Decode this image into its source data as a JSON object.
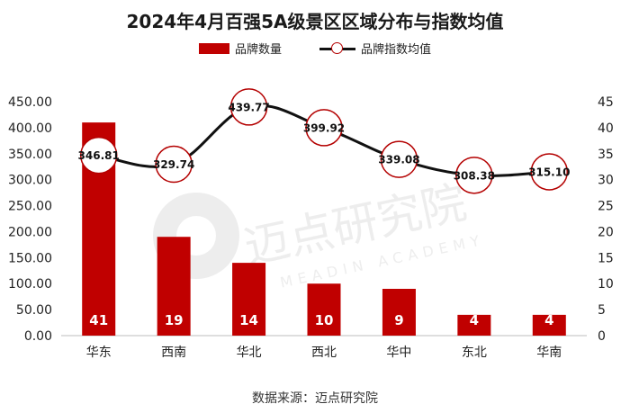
{
  "chart_data": {
    "type": "bar+line",
    "title": "2024年4月百强5A级景区区域分布与指数均值",
    "categories": [
      "华东",
      "西南",
      "华北",
      "西北",
      "华中",
      "东北",
      "华南"
    ],
    "series": [
      {
        "name": "品牌数量",
        "type": "bar",
        "axis": "right",
        "values": [
          41,
          19,
          14,
          10,
          9,
          4,
          4
        ],
        "color": "#c00000"
      },
      {
        "name": "品牌指数均值",
        "type": "line",
        "axis": "left",
        "values": [
          346.81,
          329.74,
          439.77,
          399.92,
          339.08,
          308.38,
          315.1
        ],
        "color": "#111111"
      }
    ],
    "left_axis": {
      "ylim": [
        0,
        450
      ],
      "ticks": [
        "0.00",
        "50.00",
        "100.00",
        "150.00",
        "200.00",
        "250.00",
        "300.00",
        "350.00",
        "400.00",
        "450.00"
      ]
    },
    "right_axis": {
      "ylim": [
        0,
        45
      ],
      "ticks": [
        "0",
        "5",
        "10",
        "15",
        "20",
        "25",
        "30",
        "35",
        "40",
        "45"
      ]
    },
    "bar_labels": [
      "41",
      "19",
      "14",
      "10",
      "9",
      "4",
      "4"
    ],
    "line_labels": [
      "346.81",
      "329.74",
      "439.77",
      "399.92",
      "339.08",
      "308.38",
      "315.10"
    ],
    "grid": false,
    "legend_position": "top"
  },
  "watermark": {
    "cn": "迈点研究院",
    "en": "MEADIN ACADEMY"
  },
  "source_text": "数据来源：迈点研究院"
}
